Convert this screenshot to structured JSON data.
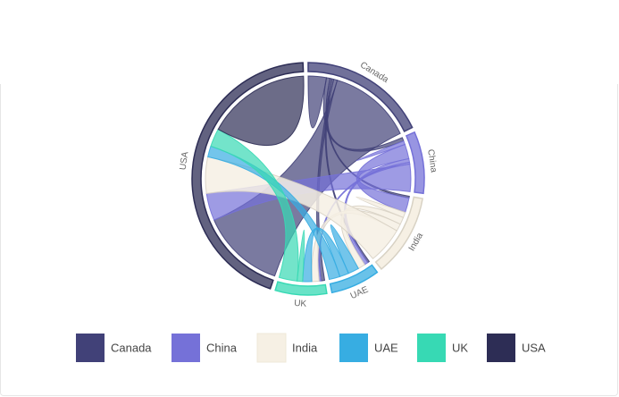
{
  "chart_data": {
    "type": "chord",
    "groups": [
      {
        "name": "Canada",
        "color": "#414178"
      },
      {
        "name": "China",
        "color": "#7571d8"
      },
      {
        "name": "India",
        "color": "#f6f0e4"
      },
      {
        "name": "UAE",
        "color": "#37ade2"
      },
      {
        "name": "UK",
        "color": "#37d9b4"
      },
      {
        "name": "USA",
        "color": "#2d2d55"
      }
    ],
    "matrix": [
      [
        10,
        2,
        1,
        1,
        2,
        46
      ],
      [
        2,
        2,
        8,
        2,
        1,
        15
      ],
      [
        1,
        8,
        3,
        4,
        4,
        20
      ],
      [
        1,
        2,
        4,
        6,
        5,
        6
      ],
      [
        2,
        1,
        4,
        5,
        3,
        10
      ],
      [
        46,
        15,
        20,
        6,
        10,
        57
      ]
    ]
  }
}
